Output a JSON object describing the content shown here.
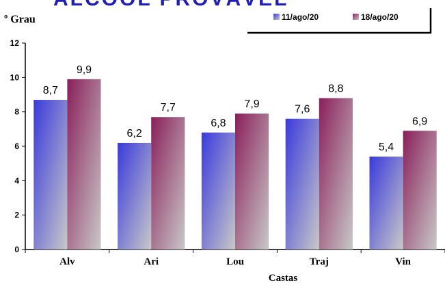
{
  "chart_data": {
    "type": "bar",
    "title": "ALCOOL PROVÁVEL",
    "ylabel": "º Grau",
    "xlabel": "Castas",
    "categories": [
      "Alv",
      "Ari",
      "Lou",
      "Traj",
      "Vin"
    ],
    "series": [
      {
        "name": "11/ago/20",
        "values": [
          8.7,
          6.2,
          6.8,
          7.6,
          5.4
        ],
        "value_labels": [
          "8,7",
          "6,2",
          "6,8",
          "7,6",
          "5,4"
        ],
        "color_top": "#3a3adc",
        "color_bottom": "#c8c8c8"
      },
      {
        "name": "18/ago/20",
        "values": [
          9.9,
          7.7,
          7.9,
          8.8,
          6.9
        ],
        "value_labels": [
          "9,9",
          "7,7",
          "7,9",
          "8,8",
          "6,9"
        ],
        "color_top": "#8a1f5a",
        "color_bottom": "#c8c8c8"
      }
    ],
    "ylim": [
      0,
      12
    ],
    "yticks": [
      0,
      2,
      4,
      6,
      8,
      10,
      12
    ],
    "grid": false,
    "legend_position": "top-right"
  }
}
